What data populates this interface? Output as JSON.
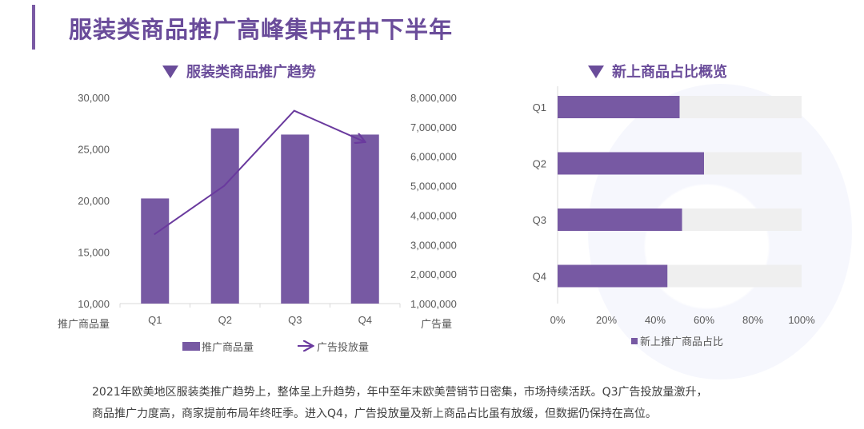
{
  "header": {
    "title": "服装类商品推广高峰集中在中下半年"
  },
  "colors": {
    "accent": "#6a4c9a",
    "bar": "#7759a3",
    "line": "#6a3a9e",
    "track": "#efefef"
  },
  "left_chart": {
    "title": "服装类商品推广趋势",
    "y_left_label": "推广商品量",
    "y_right_label": "广告量",
    "y_left_ticks": [
      "30,000",
      "25,000",
      "20,000",
      "15,000",
      "10,000"
    ],
    "y_right_ticks": [
      "8,000,000",
      "7,000,000",
      "6,000,000",
      "5,000,000",
      "4,000,000",
      "3,000,000",
      "2,000,000",
      "1,000,000"
    ],
    "categories": [
      "Q1",
      "Q2",
      "Q3",
      "Q4"
    ],
    "legend": {
      "bar": "推广商品量",
      "line": "广告投放量"
    }
  },
  "right_chart": {
    "title": "新上商品占比概览",
    "categories": [
      "Q1",
      "Q2",
      "Q3",
      "Q4"
    ],
    "x_ticks": [
      "0%",
      "20%",
      "40%",
      "60%",
      "80%",
      "100%"
    ],
    "legend": "新上推广商品占比"
  },
  "description": {
    "line1": "2021年欧美地区服装类推广趋势上，整体呈上升趋势，年中至年末欧美营销节日密集，市场持续活跃。Q3广告投放量激升，",
    "line2": "商品推广力度高，商家提前布局年终旺季。进入Q4，广告投放量及新上商品占比虽有放缓，但数据仍保持在高位。"
  },
  "chart_data": [
    {
      "type": "bar",
      "title": "服装类商品推广趋势",
      "categories": [
        "Q1",
        "Q2",
        "Q3",
        "Q4"
      ],
      "series": [
        {
          "name": "推广商品量",
          "type": "bar",
          "axis": "left",
          "values": [
            20200,
            27000,
            26400,
            26400
          ]
        },
        {
          "name": "广告投放量",
          "type": "line",
          "axis": "right",
          "values": [
            3350000,
            5000000,
            7550000,
            6500000
          ]
        }
      ],
      "xlabel": "",
      "ylabel": "推广商品量",
      "ylabel_right": "广告量",
      "ylim": [
        10000,
        30000
      ],
      "ylim_right": [
        1000000,
        8000000
      ],
      "grid": false,
      "legend_position": "bottom"
    },
    {
      "type": "bar",
      "orientation": "horizontal",
      "title": "新上商品占比概览",
      "categories": [
        "Q1",
        "Q2",
        "Q3",
        "Q4"
      ],
      "series": [
        {
          "name": "新上推广商品占比",
          "values": [
            0.5,
            0.6,
            0.51,
            0.45
          ]
        }
      ],
      "xlim": [
        0,
        1
      ],
      "x_tick_format": "percent",
      "grid": false,
      "legend_position": "bottom"
    }
  ]
}
